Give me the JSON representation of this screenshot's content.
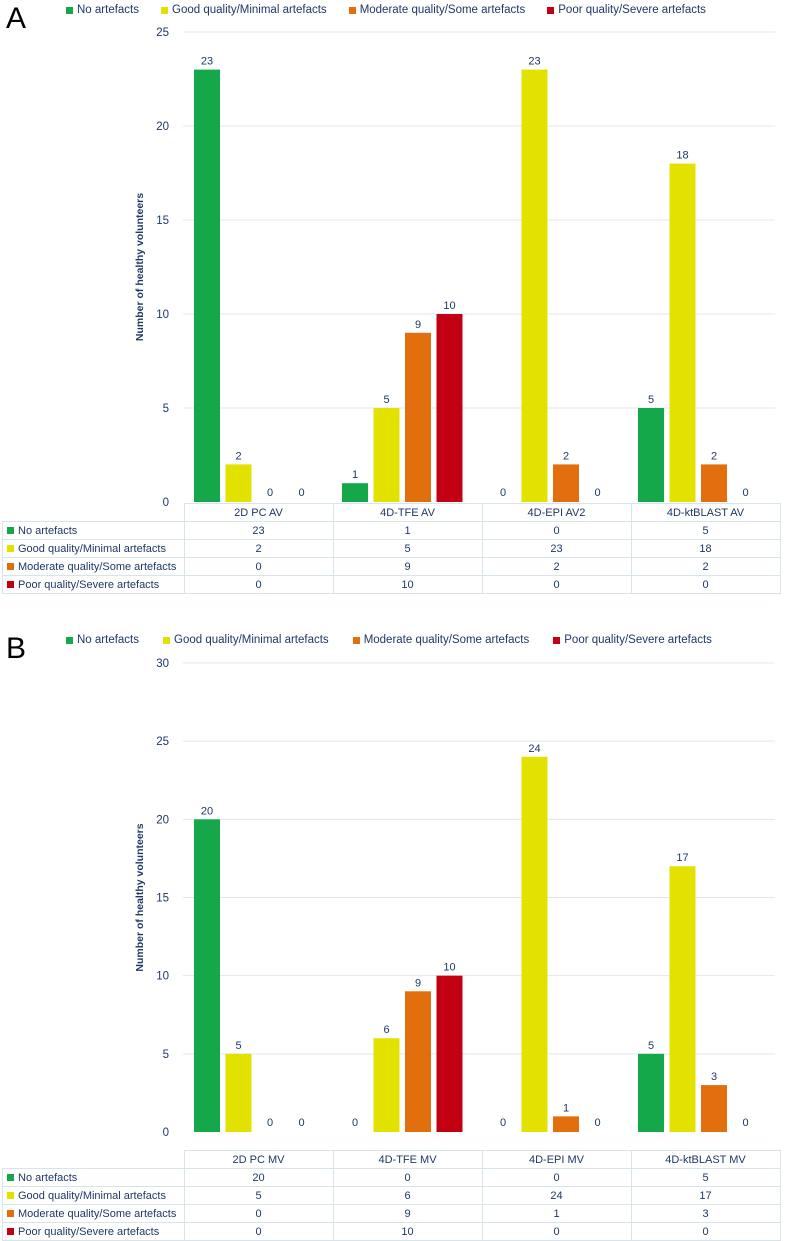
{
  "colors": {
    "series": [
      "#14a84a",
      "#e3e100",
      "#e26e0e",
      "#c20012"
    ],
    "grid": "#dde9ef",
    "text": "#1f3864"
  },
  "chart_data": [
    {
      "panel_label": "A",
      "type": "bar",
      "categories": [
        "2D PC AV",
        "4D-TFE AV",
        "4D-EPI AV2",
        "4D-ktBLAST AV"
      ],
      "series": [
        {
          "name": "No artefacts",
          "values": [
            23,
            1,
            0,
            5
          ]
        },
        {
          "name": "Good quality/Minimal artefacts",
          "values": [
            2,
            5,
            23,
            18
          ]
        },
        {
          "name": "Moderate quality/Some artefacts",
          "values": [
            0,
            9,
            2,
            2
          ]
        },
        {
          "name": "Poor quality/Severe artefacts",
          "values": [
            0,
            10,
            0,
            0
          ]
        }
      ],
      "ylabel": "Number of healthy volunteers",
      "ylim": [
        0,
        25
      ],
      "yticks": [
        0,
        5,
        10,
        15,
        20,
        25
      ],
      "legend_position": "top"
    },
    {
      "panel_label": "B",
      "type": "bar",
      "categories": [
        "2D PC MV",
        "4D-TFE MV",
        "4D-EPI MV",
        "4D-ktBLAST MV"
      ],
      "series": [
        {
          "name": "No artefacts",
          "values": [
            20,
            0,
            0,
            5
          ]
        },
        {
          "name": "Good quality/Minimal artefacts",
          "values": [
            5,
            6,
            24,
            17
          ]
        },
        {
          "name": "Moderate quality/Some artefacts",
          "values": [
            0,
            9,
            1,
            3
          ]
        },
        {
          "name": "Poor quality/Severe artefacts",
          "values": [
            0,
            10,
            0,
            0
          ]
        }
      ],
      "ylabel": "Number of healthy volunteers",
      "ylim": [
        0,
        30
      ],
      "yticks": [
        0,
        5,
        10,
        15,
        20,
        25,
        30
      ],
      "legend_position": "top"
    }
  ]
}
